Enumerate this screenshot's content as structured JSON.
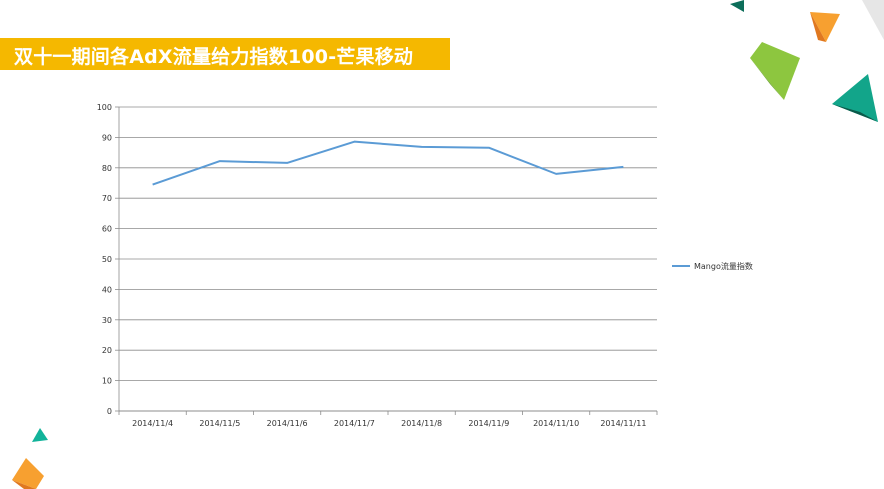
{
  "title": "双十一期间各AdX流量给力指数100-芒果移动",
  "colors": {
    "title_bg": "#f5b800",
    "series": "#5b9bd5",
    "grid": "#8c8c8c"
  },
  "chart_data": {
    "type": "line",
    "categories": [
      "2014/11/4",
      "2014/11/5",
      "2014/11/6",
      "2014/11/7",
      "2014/11/8",
      "2014/11/9",
      "2014/11/10",
      "2014/11/11"
    ],
    "series": [
      {
        "name": "Mango流量指数",
        "values": [
          74.5,
          82.2,
          81.6,
          88.6,
          86.9,
          86.6,
          78.0,
          80.3
        ]
      }
    ],
    "yticks": [
      "0",
      "10",
      "20",
      "30",
      "40",
      "50",
      "60",
      "70",
      "80",
      "90",
      "100"
    ],
    "ylim": [
      0,
      100
    ],
    "grid": true,
    "legend_position": "right"
  }
}
